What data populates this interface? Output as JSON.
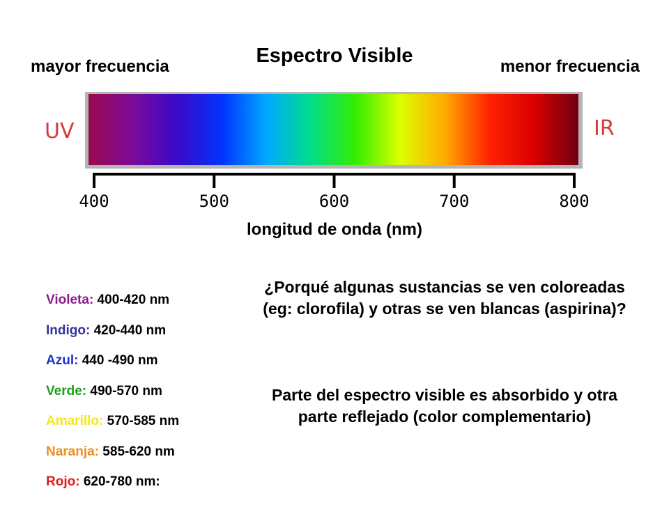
{
  "title": "Espectro Visible",
  "left_label": "mayor frecuencia",
  "right_label": "menor frecuencia",
  "uv_label": "UV",
  "ir_label": "IR",
  "axis_label": "longitud de onda (nm)",
  "axis": {
    "ticks": [
      {
        "value": 400,
        "label": "400"
      },
      {
        "value": 500,
        "label": "500"
      },
      {
        "value": 600,
        "label": "600"
      },
      {
        "value": 700,
        "label": "700"
      },
      {
        "value": 800,
        "label": "800"
      }
    ]
  },
  "ranges": [
    {
      "name": "Violeta:",
      "value": "400-420 nm",
      "color": "#8B1A8B"
    },
    {
      "name": "Indigo:",
      "value": "420-440 nm",
      "color": "#3333A0"
    },
    {
      "name": "Azul:",
      "value": "440 -490 nm",
      "color": "#1A33CC"
    },
    {
      "name": "Verde:",
      "value": "490-570 nm",
      "color": "#1AA01A"
    },
    {
      "name": "Amarillo:",
      "value": "570-585 nm",
      "color": "#F5E61A"
    },
    {
      "name": "Naranja:",
      "value": "585-620 nm",
      "color": "#F08C1A"
    },
    {
      "name": "Rojo:",
      "value": "620-780 nm:",
      "color": "#E61A1A"
    }
  ],
  "question": "¿Porqué algunas sustancias se ven coloreadas (eg: clorofila) y otras se ven blancas (aspirina)?",
  "answer": "Parte del espectro visible es absorbido y otra parte reflejado (color complementario)",
  "colors": {
    "uv_ir_label": "#D23C3C",
    "spectrum_stops": [
      "#9B0A4B",
      "#7A0A9A",
      "#3A0AC8",
      "#0033FF",
      "#00AAFF",
      "#00DD88",
      "#33EE00",
      "#DDFF00",
      "#FFAA00",
      "#FF2200",
      "#D90000",
      "#6E0010"
    ]
  }
}
